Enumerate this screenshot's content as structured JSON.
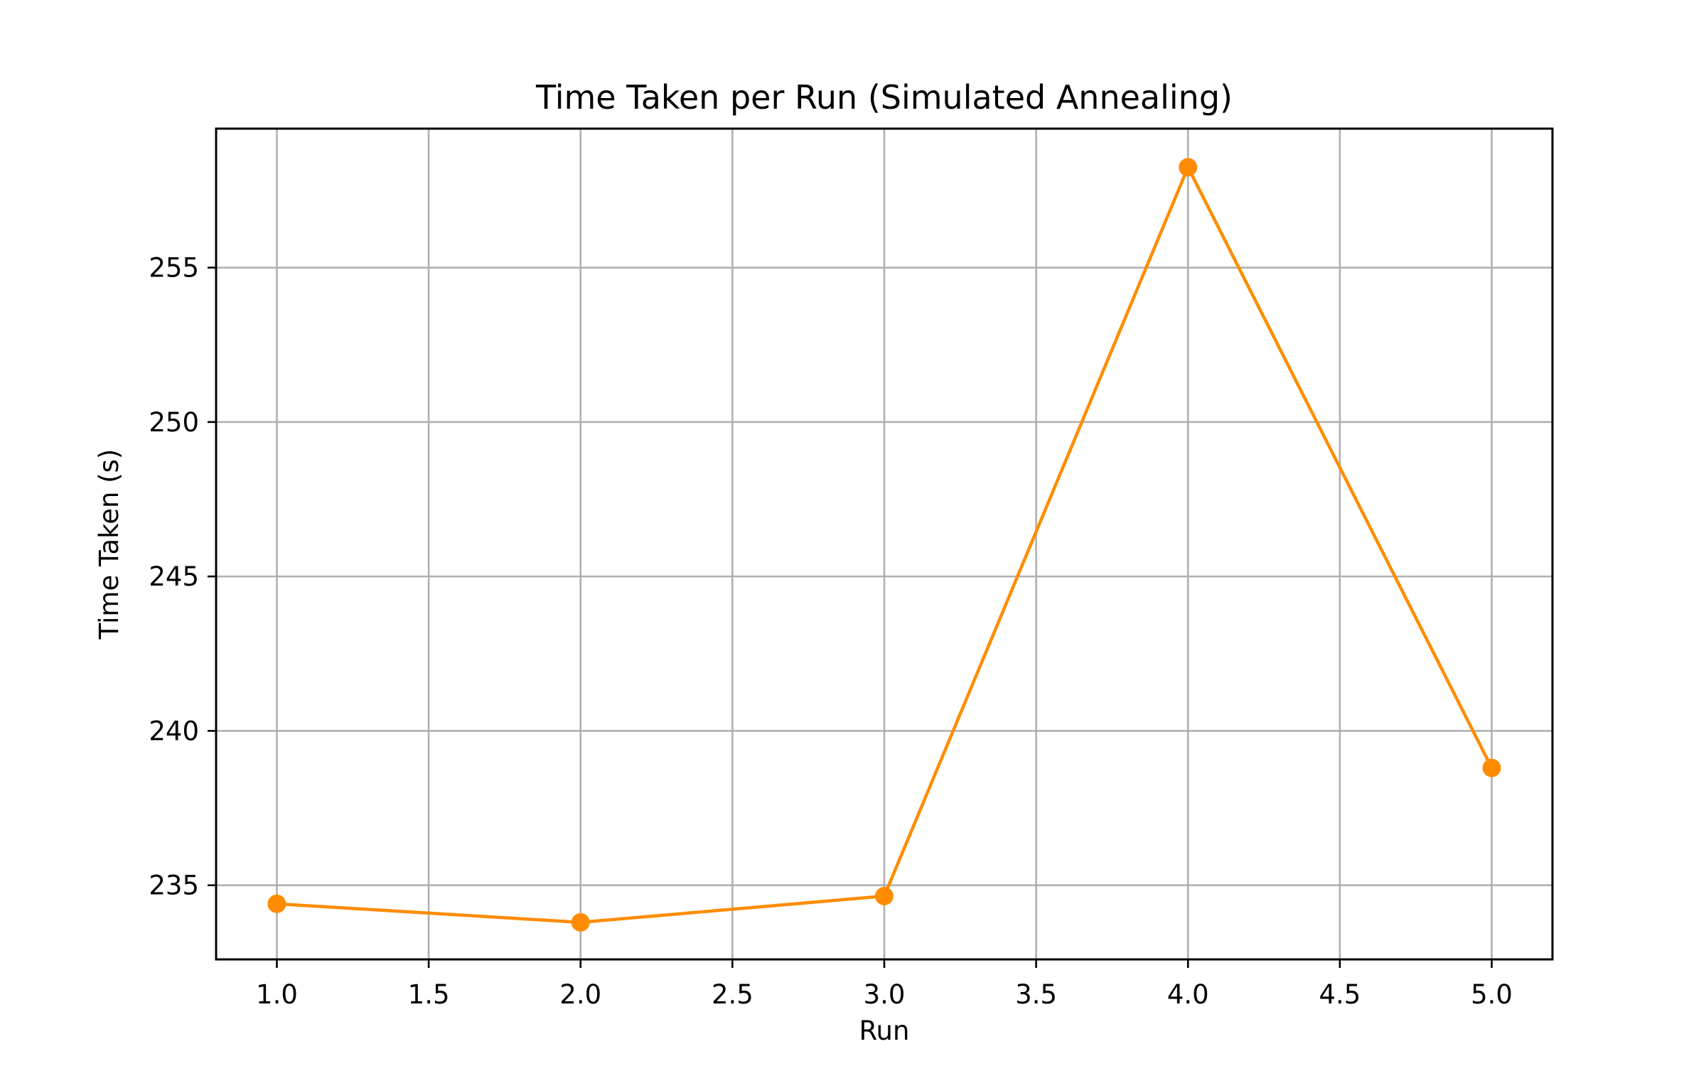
{
  "chart_data": {
    "type": "line",
    "title": "Time Taken per Run (Simulated Annealing)",
    "xlabel": "Run",
    "ylabel": "Time Taken (s)",
    "xlim": [
      0.8,
      5.2
    ],
    "ylim": [
      232.6,
      259.5
    ],
    "x_ticks": [
      "1.0",
      "1.5",
      "2.0",
      "2.5",
      "3.0",
      "3.5",
      "4.0",
      "4.5",
      "5.0"
    ],
    "y_ticks": [
      "235",
      "240",
      "245",
      "250",
      "255"
    ],
    "grid": true,
    "series": [
      {
        "x": [
          1,
          2,
          3,
          4,
          5
        ],
        "y": [
          234.4,
          233.8,
          234.65,
          258.25,
          238.8
        ],
        "color": "#ff8c00",
        "marker": "circle"
      }
    ]
  }
}
